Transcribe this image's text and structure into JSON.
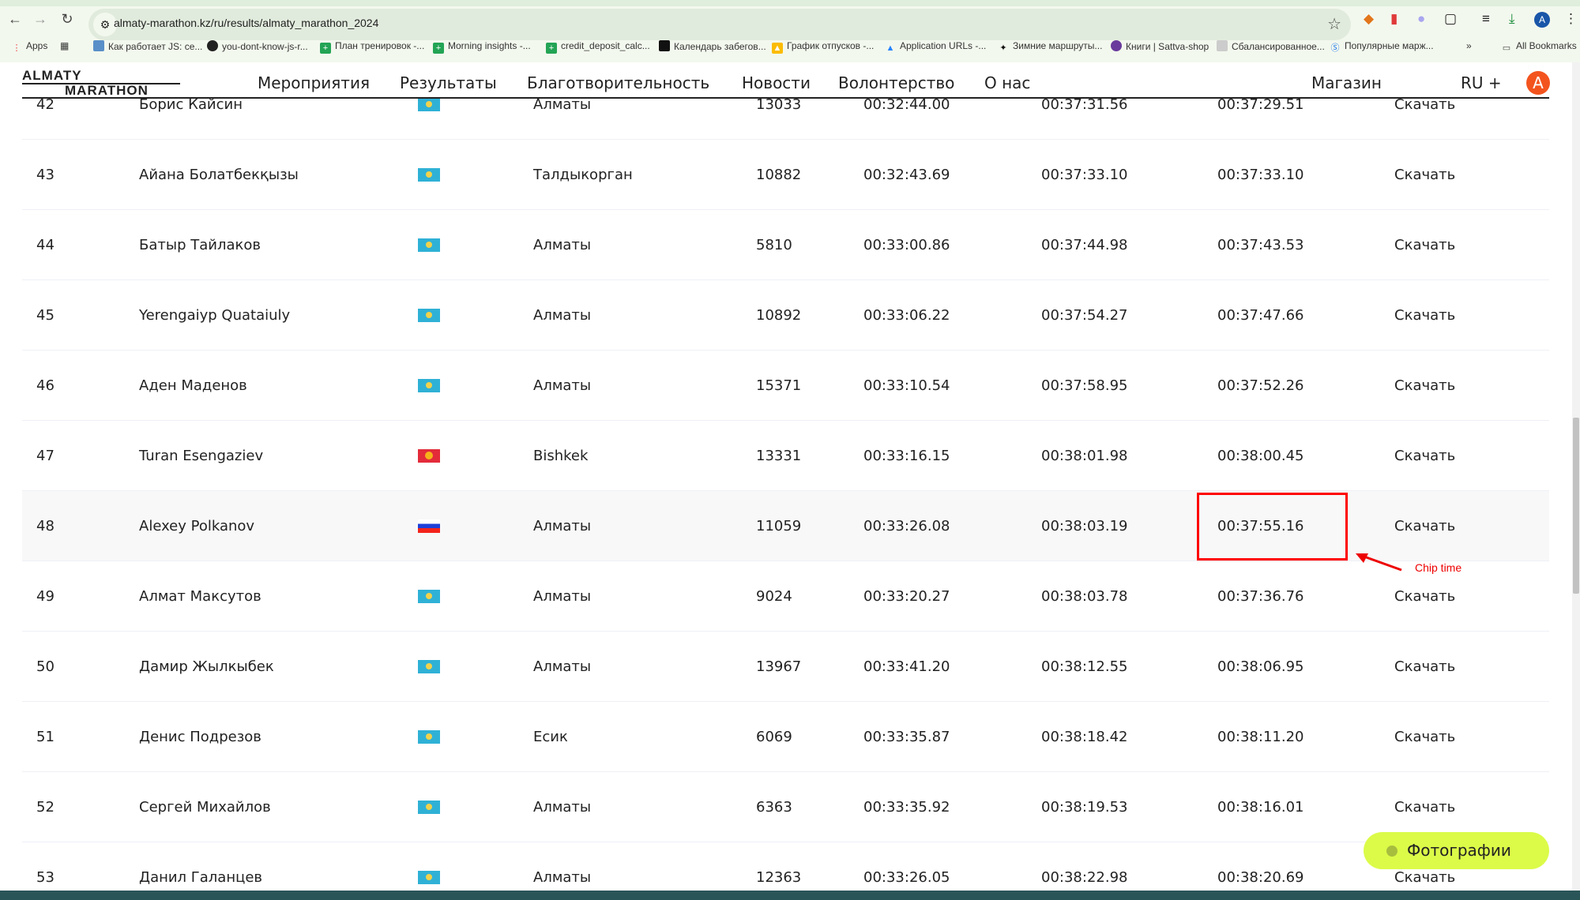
{
  "browser": {
    "url": "almaty-marathon.kz/ru/results/almaty_marathon_2024",
    "bookmarks": [
      "Apps",
      "Как работает JS: се...",
      "you-dont-know-js-r...",
      "План тренировок -...",
      "Morning insights -...",
      "credit_deposit_calc...",
      "Календарь забегов...",
      "График отпусков -...",
      "Application URLs -...",
      "Зимние маршруты...",
      "Книги | Sattva-shop",
      "Сбалансированное...",
      "Популярные марж..."
    ],
    "all_bookmarks": "All Bookmarks",
    "profile_initial": "A"
  },
  "header": {
    "logo_top": "ALMATY",
    "logo_bottom": "MARATHON",
    "menu": [
      "Мероприятия",
      "Результаты",
      "Благотворительность",
      "Новости",
      "Волонтерство",
      "О нас"
    ],
    "shop": "Магазин",
    "lang": "RU +",
    "avatar": "A"
  },
  "results": [
    {
      "rank": "42",
      "name": "Борис Кайсин",
      "flag": "kz",
      "city": "Алматы",
      "bib": "13033",
      "gun": "00:32:44.00",
      "t2": "00:37:31.56",
      "chip": "00:37:29.51",
      "download": "Скачать"
    },
    {
      "rank": "43",
      "name": "Айана Болатбекқызы",
      "flag": "kz",
      "city": "Талдыкорган",
      "bib": "10882",
      "gun": "00:32:43.69",
      "t2": "00:37:33.10",
      "chip": "00:37:33.10",
      "download": "Скачать"
    },
    {
      "rank": "44",
      "name": "Батыр Тайлаков",
      "flag": "kz",
      "city": "Алматы",
      "bib": "5810",
      "gun": "00:33:00.86",
      "t2": "00:37:44.98",
      "chip": "00:37:43.53",
      "download": "Скачать"
    },
    {
      "rank": "45",
      "name": "Yerengaiyp Quataiuly",
      "flag": "kz",
      "city": "Алматы",
      "bib": "10892",
      "gun": "00:33:06.22",
      "t2": "00:37:54.27",
      "chip": "00:37:47.66",
      "download": "Скачать"
    },
    {
      "rank": "46",
      "name": "Аден Маденов",
      "flag": "kz",
      "city": "Алматы",
      "bib": "15371",
      "gun": "00:33:10.54",
      "t2": "00:37:58.95",
      "chip": "00:37:52.26",
      "download": "Скачать"
    },
    {
      "rank": "47",
      "name": "Turan Esengaziev",
      "flag": "kg",
      "city": "Bishkek",
      "bib": "13331",
      "gun": "00:33:16.15",
      "t2": "00:38:01.98",
      "chip": "00:38:00.45",
      "download": "Скачать"
    },
    {
      "rank": "48",
      "name": "Alexey Polkanov",
      "flag": "ru",
      "city": "Алматы",
      "bib": "11059",
      "gun": "00:33:26.08",
      "t2": "00:38:03.19",
      "chip": "00:37:55.16",
      "download": "Скачать",
      "highlighted": true
    },
    {
      "rank": "49",
      "name": "Алмат Максутов",
      "flag": "kz",
      "city": "Алматы",
      "bib": "9024",
      "gun": "00:33:20.27",
      "t2": "00:38:03.78",
      "chip": "00:37:36.76",
      "download": "Скачать"
    },
    {
      "rank": "50",
      "name": "Дамир Жылкыбек",
      "flag": "kz",
      "city": "Алматы",
      "bib": "13967",
      "gun": "00:33:41.20",
      "t2": "00:38:12.55",
      "chip": "00:38:06.95",
      "download": "Скачать"
    },
    {
      "rank": "51",
      "name": "Денис Подрезов",
      "flag": "kz",
      "city": "Есик",
      "bib": "6069",
      "gun": "00:33:35.87",
      "t2": "00:38:18.42",
      "chip": "00:38:11.20",
      "download": "Скачать"
    },
    {
      "rank": "52",
      "name": "Сергей Михайлов",
      "flag": "kz",
      "city": "Алматы",
      "bib": "6363",
      "gun": "00:33:35.92",
      "t2": "00:38:19.53",
      "chip": "00:38:16.01",
      "download": "Скачать"
    },
    {
      "rank": "53",
      "name": "Данил Галанцев",
      "flag": "kz",
      "city": "Алматы",
      "bib": "12363",
      "gun": "00:33:26.05",
      "t2": "00:38:22.98",
      "chip": "00:38:20.69",
      "download": "Скачать"
    }
  ],
  "annotation": {
    "label": "Chip time",
    "color": "#ff0000"
  },
  "photos_button": "Фотографии",
  "colors": {
    "accent": "#f3541e",
    "photos": "#dbfb48"
  }
}
